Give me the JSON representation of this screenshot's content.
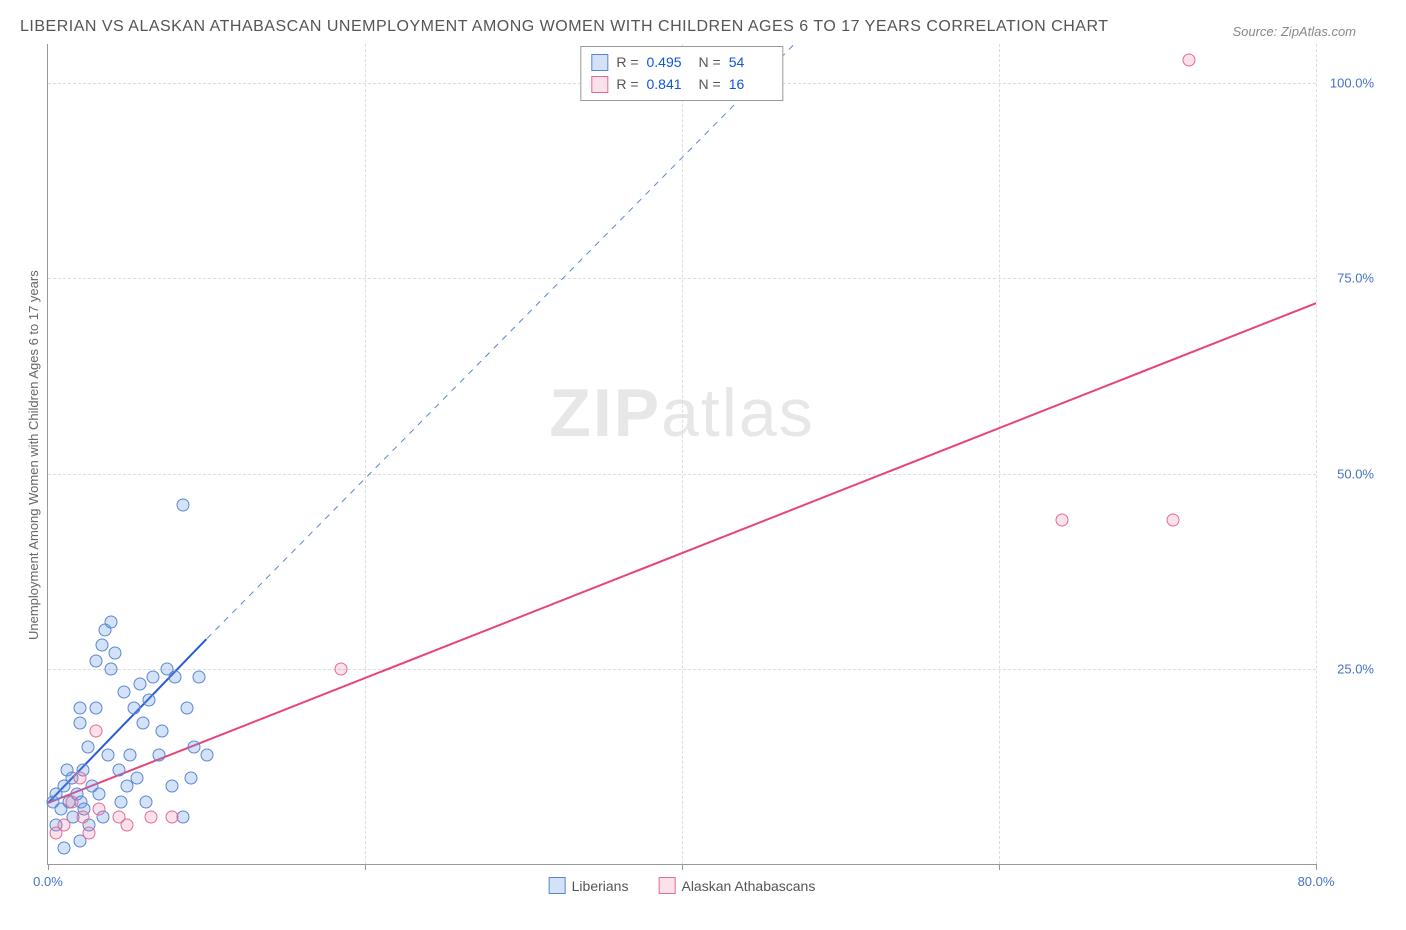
{
  "title": "LIBERIAN VS ALASKAN ATHABASCAN UNEMPLOYMENT AMONG WOMEN WITH CHILDREN AGES 6 TO 17 YEARS CORRELATION CHART",
  "source": "Source: ZipAtlas.com",
  "y_axis_label": "Unemployment Among Women with Children Ages 6 to 17 years",
  "watermark_bold": "ZIP",
  "watermark_light": "atlas",
  "chart": {
    "type": "scatter",
    "x_range": [
      0,
      80
    ],
    "y_range": [
      0,
      105
    ],
    "x_ticks": [
      0,
      20,
      40,
      60,
      80
    ],
    "x_tick_labels": [
      "0.0%",
      "",
      "",
      "",
      "80.0%"
    ],
    "y_ticks": [
      25,
      50,
      75,
      100
    ],
    "y_tick_labels": [
      "25.0%",
      "50.0%",
      "75.0%",
      "100.0%"
    ],
    "grid_color": "#dddddd",
    "axis_color": "#999999",
    "background": "#ffffff"
  },
  "series": [
    {
      "name": "Liberians",
      "color_fill": "rgba(100,150,230,0.28)",
      "color_stroke": "#5a86d0",
      "marker_size": 13,
      "stats": {
        "R": "0.495",
        "N": "54"
      },
      "trend": {
        "x1": 0,
        "y1": 8,
        "x2": 10,
        "y2": 29,
        "dash": false,
        "color": "#2a5bd7",
        "width": 2
      },
      "trend_ext": {
        "x1": 10,
        "y1": 29,
        "x2": 47,
        "y2": 105,
        "dash": true,
        "color": "#5a86d0",
        "width": 1
      },
      "points": [
        [
          0.3,
          8
        ],
        [
          0.5,
          9
        ],
        [
          0.8,
          7
        ],
        [
          1.0,
          10
        ],
        [
          1.2,
          12
        ],
        [
          1.3,
          8
        ],
        [
          1.5,
          11
        ],
        [
          1.6,
          6
        ],
        [
          1.8,
          9
        ],
        [
          2.0,
          18
        ],
        [
          2.0,
          20
        ],
        [
          2.1,
          8
        ],
        [
          2.2,
          12
        ],
        [
          2.3,
          7
        ],
        [
          2.5,
          15
        ],
        [
          2.6,
          5
        ],
        [
          2.8,
          10
        ],
        [
          3.0,
          20
        ],
        [
          3.0,
          26
        ],
        [
          3.2,
          9
        ],
        [
          3.4,
          28
        ],
        [
          3.5,
          6
        ],
        [
          3.6,
          30
        ],
        [
          3.8,
          14
        ],
        [
          4.0,
          31
        ],
        [
          4.0,
          25
        ],
        [
          4.2,
          27
        ],
        [
          4.5,
          12
        ],
        [
          4.6,
          8
        ],
        [
          4.8,
          22
        ],
        [
          5.0,
          10
        ],
        [
          5.2,
          14
        ],
        [
          5.4,
          20
        ],
        [
          5.6,
          11
        ],
        [
          5.8,
          23
        ],
        [
          6.0,
          18
        ],
        [
          6.2,
          8
        ],
        [
          6.4,
          21
        ],
        [
          6.6,
          24
        ],
        [
          7.0,
          14
        ],
        [
          7.2,
          17
        ],
        [
          7.5,
          25
        ],
        [
          7.8,
          10
        ],
        [
          8.0,
          24
        ],
        [
          8.5,
          6
        ],
        [
          8.8,
          20
        ],
        [
          9.0,
          11
        ],
        [
          9.2,
          15
        ],
        [
          9.5,
          24
        ],
        [
          10.0,
          14
        ],
        [
          2.0,
          3
        ],
        [
          1.0,
          2
        ],
        [
          0.5,
          5
        ],
        [
          8.5,
          46
        ]
      ]
    },
    {
      "name": "Alaskan Athabascans",
      "color_fill": "rgba(235,120,160,0.22)",
      "color_stroke": "#e26b98",
      "marker_size": 13,
      "stats": {
        "R": "0.841",
        "N": "16"
      },
      "trend": {
        "x1": 0,
        "y1": 8,
        "x2": 80,
        "y2": 72,
        "dash": false,
        "color": "#e8447a",
        "width": 2
      },
      "points": [
        [
          0.5,
          4
        ],
        [
          1.0,
          5
        ],
        [
          1.5,
          8
        ],
        [
          2.0,
          11
        ],
        [
          2.2,
          6
        ],
        [
          2.6,
          4
        ],
        [
          3.0,
          17
        ],
        [
          3.2,
          7
        ],
        [
          4.5,
          6
        ],
        [
          5.0,
          5
        ],
        [
          6.5,
          6
        ],
        [
          7.8,
          6
        ],
        [
          18.5,
          25
        ],
        [
          64,
          44
        ],
        [
          71,
          44
        ],
        [
          72,
          103
        ]
      ]
    }
  ],
  "legend_bottom": [
    "Liberians",
    "Alaskan Athabascans"
  ],
  "stats_labels": {
    "R": "R =",
    "N": "N ="
  }
}
